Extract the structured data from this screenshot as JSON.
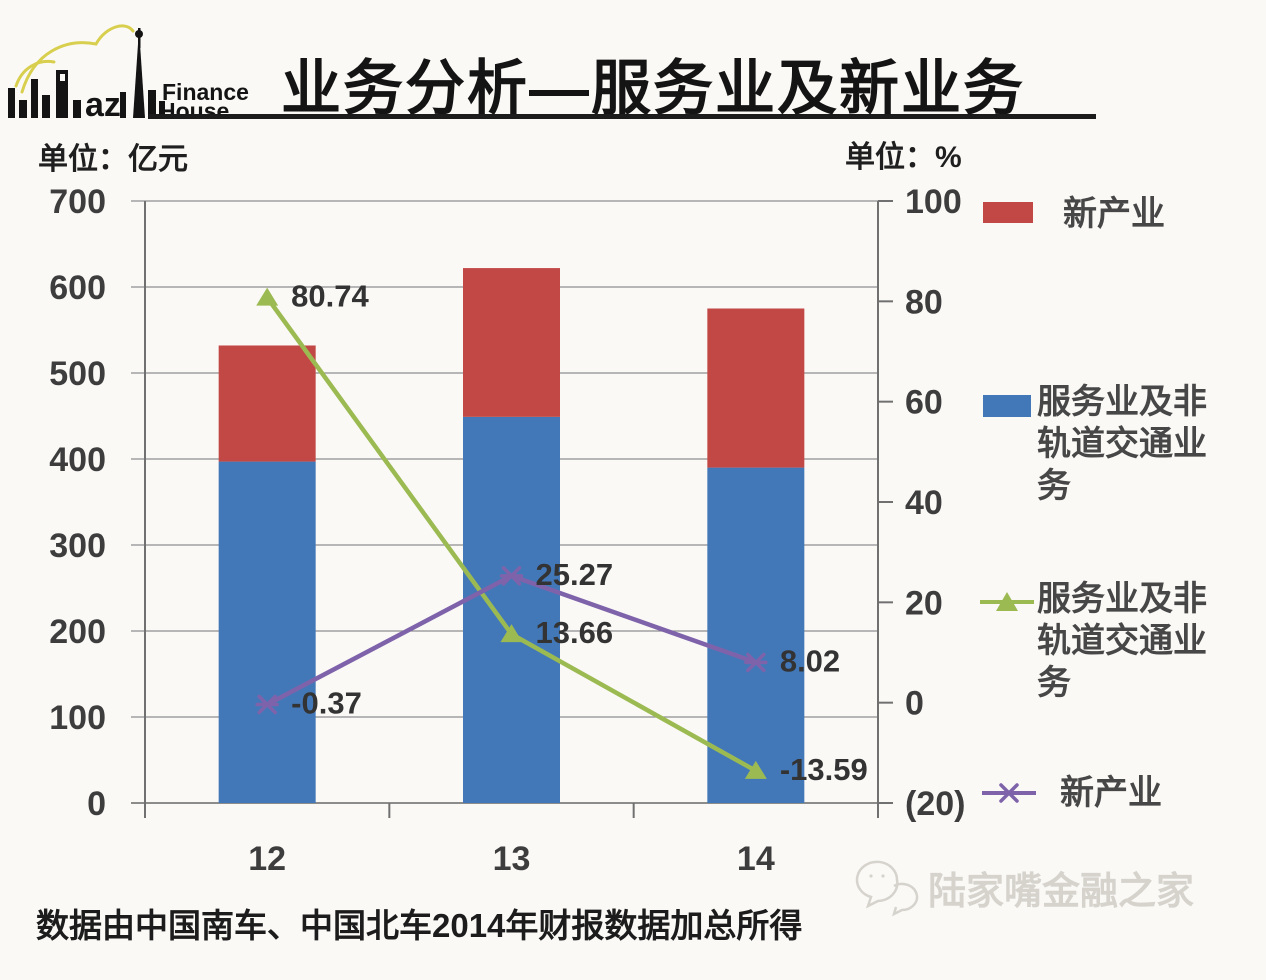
{
  "header": {
    "title": "业务分析—服务业及新业务",
    "logo": {
      "line1": "Finance",
      "line2": "House",
      "mark": "az"
    }
  },
  "units": {
    "left_label": "单位：亿元",
    "right_label": "单位：%"
  },
  "chart_data": {
    "type": "combo-stacked-bar-line",
    "categories": [
      "12",
      "13",
      "14"
    ],
    "left_axis": {
      "min": 0,
      "max": 700,
      "ticks": [
        {
          "v": 700,
          "label": "700"
        },
        {
          "v": 600,
          "label": "600"
        },
        {
          "v": 500,
          "label": "500"
        },
        {
          "v": 400,
          "label": "400"
        },
        {
          "v": 300,
          "label": "300"
        },
        {
          "v": 200,
          "label": "200"
        },
        {
          "v": 100,
          "label": "100"
        },
        {
          "v": 0,
          "label": "0"
        }
      ]
    },
    "right_axis": {
      "min": -20,
      "max": 100,
      "ticks": [
        {
          "v": 100,
          "label": "100"
        },
        {
          "v": 80,
          "label": "80"
        },
        {
          "v": 60,
          "label": "60"
        },
        {
          "v": 40,
          "label": "40"
        },
        {
          "v": 20,
          "label": "20"
        },
        {
          "v": 0,
          "label": "0"
        },
        {
          "v": -20,
          "label": "(20)"
        }
      ]
    },
    "grid": true,
    "bar_series": [
      {
        "name": "服务业及非轨道交通业务",
        "color": "#4378b8",
        "values": [
          397,
          449,
          390
        ]
      },
      {
        "name": "新产业",
        "color": "#c24845",
        "values": [
          135,
          173,
          185
        ]
      }
    ],
    "line_series": [
      {
        "name": "服务业及非轨道交通业务",
        "color": "#9cba52",
        "marker": "triangle",
        "values": [
          80.74,
          13.66,
          -13.59
        ],
        "data_labels": [
          "80.74",
          "13.66",
          "-13.59"
        ]
      },
      {
        "name": "新产业",
        "color": "#7e63ab",
        "marker": "x",
        "values": [
          -0.37,
          25.27,
          8.02
        ],
        "data_labels": [
          "-0.37",
          "25.27",
          "8.02"
        ]
      }
    ]
  },
  "legend": {
    "items": [
      {
        "label": "新产业",
        "swatch": "bar",
        "color": "#c24845"
      },
      {
        "label": "服务业及非轨道交通业务",
        "swatch": "bar",
        "color": "#4378b8"
      },
      {
        "label": "服务业及非轨道交通业务",
        "swatch": "line-triangle",
        "color": "#9cba52"
      },
      {
        "label": "新产业",
        "swatch": "line-x",
        "color": "#7e63ab"
      }
    ]
  },
  "footnote": "数据由中国南车、中国北车2014年财报数据加总所得",
  "watermark": {
    "text": "陆家嘴金融之家"
  }
}
